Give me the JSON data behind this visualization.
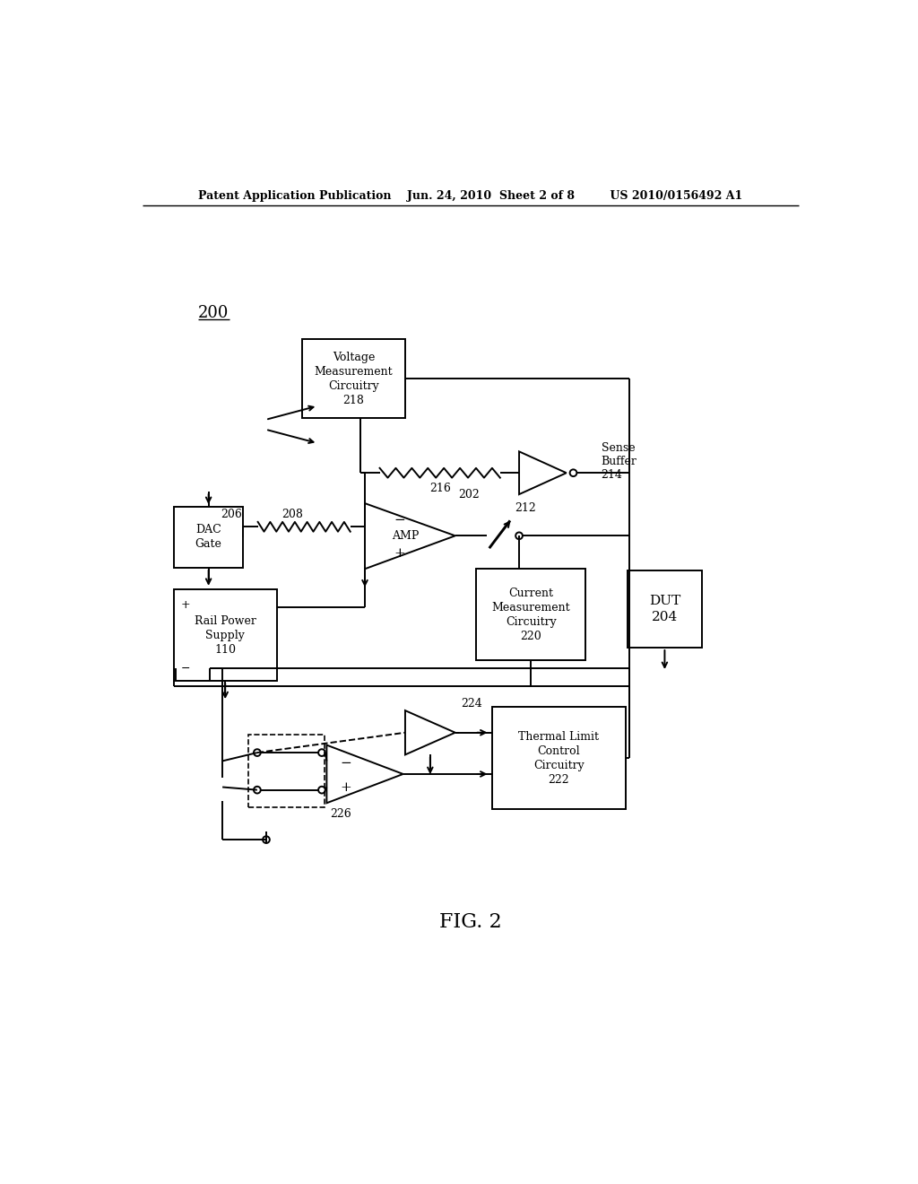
{
  "bg_color": "#ffffff",
  "lc": "#000000",
  "lw": 1.4,
  "header": "Patent Application Publication    Jun. 24, 2010  Sheet 2 of 8         US 2010/0156492 A1",
  "fig_label": "FIG. 2",
  "label_200": "200"
}
